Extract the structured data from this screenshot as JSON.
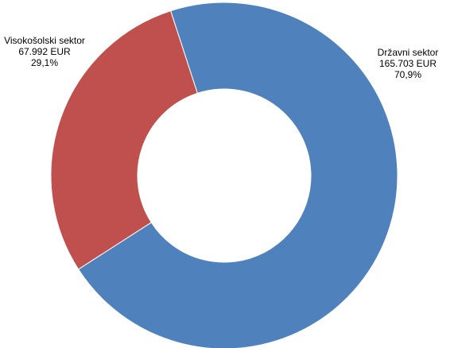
{
  "chart_data": {
    "type": "pie",
    "donut": true,
    "title": "",
    "slices": [
      {
        "name": "Državni sektor",
        "value": 165703,
        "value_label": "165.703 EUR",
        "percent_label": "70,9%",
        "color": "#4F81BD"
      },
      {
        "name": "Visokošolski sektor",
        "value": 67992,
        "value_label": "67.992 EUR",
        "percent_label": "29,1%",
        "color": "#C0504D"
      }
    ]
  }
}
